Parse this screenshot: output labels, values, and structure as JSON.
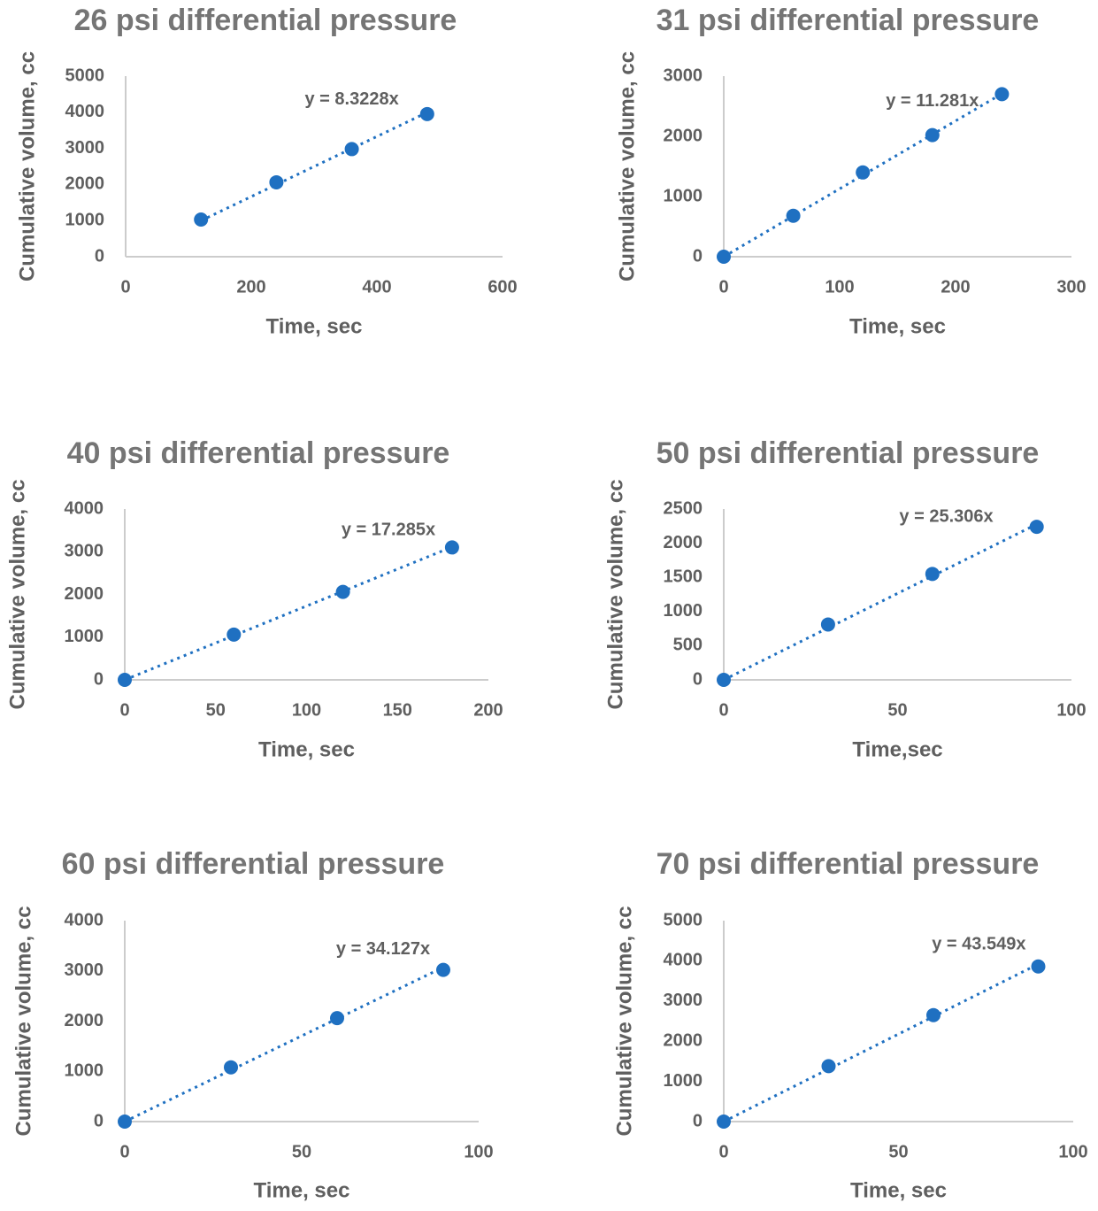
{
  "chart_data": [
    {
      "type": "scatter",
      "title": "26 psi differential pressure",
      "xlabel": "Time, sec",
      "ylabel": "Cumulative volume, cc",
      "xlim": [
        0,
        600
      ],
      "ylim": [
        0,
        5000
      ],
      "xticks": [
        0,
        200,
        400,
        600
      ],
      "yticks": [
        0,
        1000,
        2000,
        3000,
        4000,
        5000
      ],
      "x": [
        120,
        240,
        360,
        480
      ],
      "y": [
        1030,
        2060,
        2980,
        3950
      ],
      "trendline": {
        "slope": 8.3228,
        "x_from": 120,
        "x_to": 480,
        "label": "y = 8.3228x",
        "label_at": [
          360,
          4350
        ]
      }
    },
    {
      "type": "scatter",
      "title": "31 psi differential pressure",
      "xlabel": "Time, sec",
      "ylabel": "Cumulative volume, cc",
      "xlim": [
        0,
        300
      ],
      "ylim": [
        0,
        3000
      ],
      "xticks": [
        0,
        100,
        200,
        300
      ],
      "yticks": [
        0,
        1000,
        2000,
        3000
      ],
      "x": [
        0,
        60,
        120,
        180,
        240
      ],
      "y": [
        0,
        680,
        1400,
        2020,
        2700
      ],
      "trendline": {
        "slope": 11.281,
        "x_from": 0,
        "x_to": 240,
        "label": "y = 11.281x",
        "label_at": [
          180,
          2580
        ]
      }
    },
    {
      "type": "scatter",
      "title": "40 psi differential pressure",
      "xlabel": "Time, sec",
      "ylabel": "Cumulative volume, cc",
      "xlim": [
        0,
        200
      ],
      "ylim": [
        0,
        4000
      ],
      "xticks": [
        0,
        50,
        100,
        150,
        200
      ],
      "yticks": [
        0,
        1000,
        2000,
        3000,
        4000
      ],
      "x": [
        0,
        60,
        120,
        180
      ],
      "y": [
        0,
        1060,
        2060,
        3100
      ],
      "trendline": {
        "slope": 17.285,
        "x_from": 0,
        "x_to": 180,
        "label": "y = 17.285x",
        "label_at": [
          145,
          3500
        ]
      }
    },
    {
      "type": "scatter",
      "title": "50 psi differential pressure",
      "xlabel": "Time,sec",
      "ylabel": "Cumulative volume, cc",
      "xlim": [
        0,
        100
      ],
      "ylim": [
        0,
        2500
      ],
      "xticks": [
        0,
        50,
        100
      ],
      "yticks": [
        0,
        500,
        1000,
        1500,
        2000,
        2500
      ],
      "x": [
        0,
        30,
        60,
        90
      ],
      "y": [
        0,
        810,
        1550,
        2240
      ],
      "trendline": {
        "slope": 25.306,
        "x_from": 0,
        "x_to": 90,
        "label": "y = 25.306x",
        "label_at": [
          64,
          2380
        ]
      }
    },
    {
      "type": "scatter",
      "title": "60 psi differential pressure",
      "xlabel": "Time, sec",
      "ylabel": "Cumulative volume, cc",
      "xlim": [
        0,
        100
      ],
      "ylim": [
        0,
        4000
      ],
      "xticks": [
        0,
        50,
        100
      ],
      "yticks": [
        0,
        1000,
        2000,
        3000,
        4000
      ],
      "x": [
        0,
        30,
        60,
        90
      ],
      "y": [
        0,
        1080,
        2060,
        3020
      ],
      "trendline": {
        "slope": 34.127,
        "x_from": 0,
        "x_to": 90,
        "label": "y = 34.127x",
        "label_at": [
          73,
          3420
        ]
      }
    },
    {
      "type": "scatter",
      "title": "70 psi differential pressure",
      "xlabel": "Time, sec",
      "ylabel": "Cumulative volume, cc",
      "xlim": [
        0,
        100
      ],
      "ylim": [
        0,
        5000
      ],
      "xticks": [
        0,
        50,
        100
      ],
      "yticks": [
        0,
        1000,
        2000,
        3000,
        4000,
        5000
      ],
      "x": [
        0,
        30,
        60,
        90
      ],
      "y": [
        0,
        1380,
        2650,
        3860
      ],
      "trendline": {
        "slope": 43.549,
        "x_from": 0,
        "x_to": 90,
        "label": "y = 43.549x",
        "label_at": [
          73,
          4400
        ]
      }
    }
  ]
}
